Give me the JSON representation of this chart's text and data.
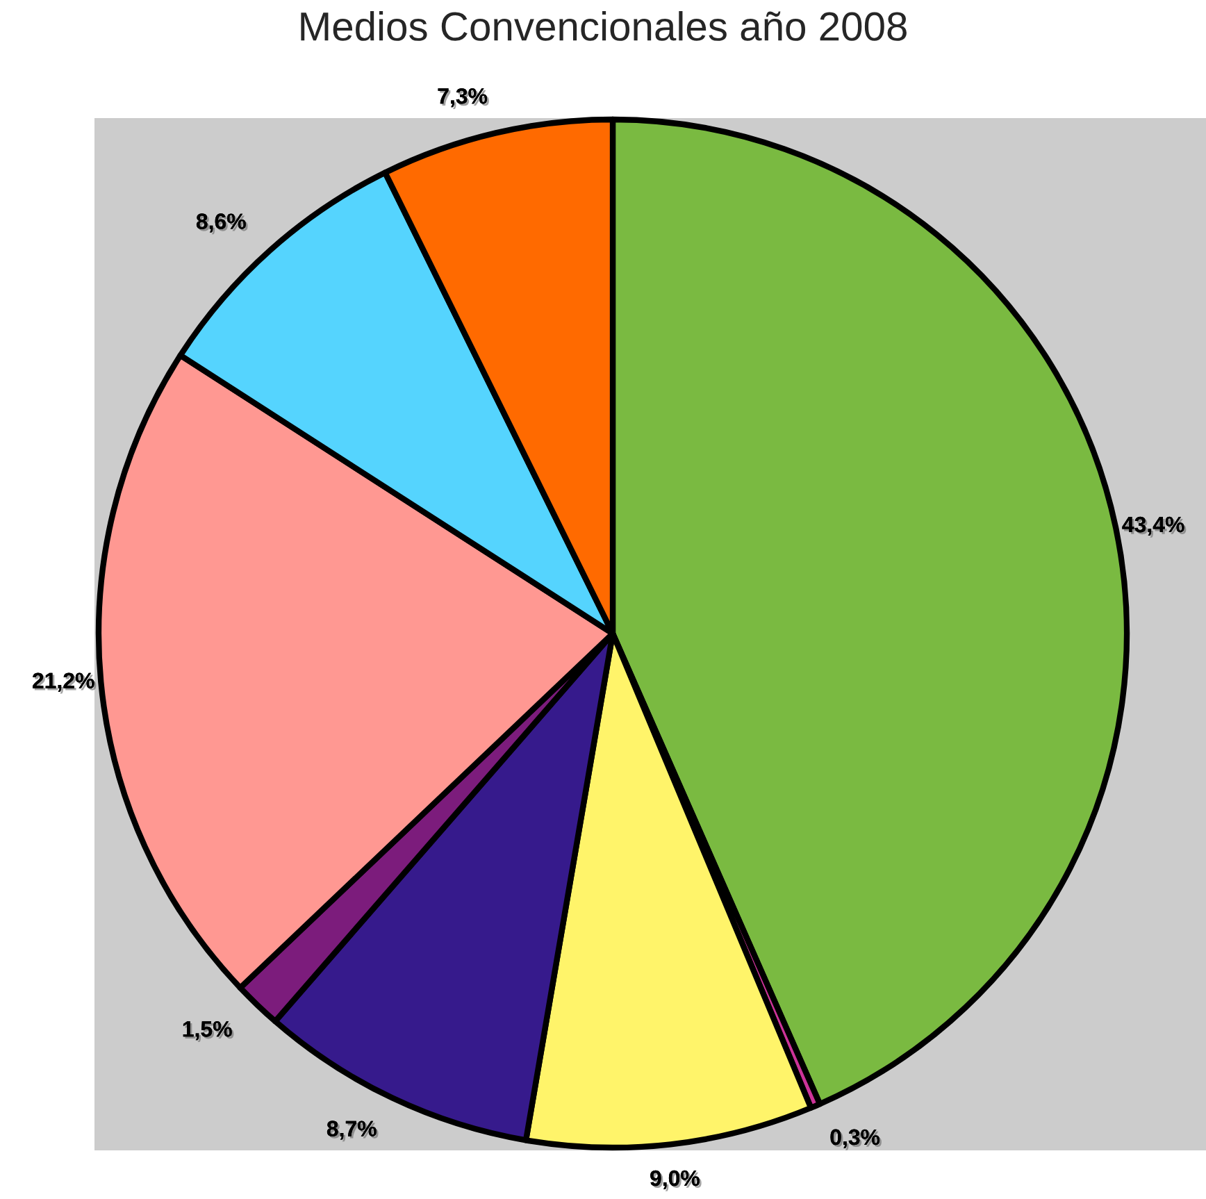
{
  "chart_data": {
    "type": "pie",
    "title": "Medios Convencionales año 2008",
    "categories": [
      null,
      null,
      null,
      null,
      null,
      null,
      null,
      null
    ],
    "values": [
      43.4,
      0.3,
      9.0,
      8.7,
      1.5,
      21.2,
      8.6,
      7.3
    ],
    "value_labels": [
      "43,4%",
      "0,3%",
      "9,0%",
      "8,7%",
      "1,5%",
      "21,2%",
      "8,6%",
      "7,3%"
    ],
    "colors": [
      "#7aba41",
      "#cc3399",
      "#fff46a",
      "#361a8c",
      "#7c1c7c",
      "#ff9892",
      "#55d4fe",
      "#ff6a00"
    ],
    "legend": false
  }
}
